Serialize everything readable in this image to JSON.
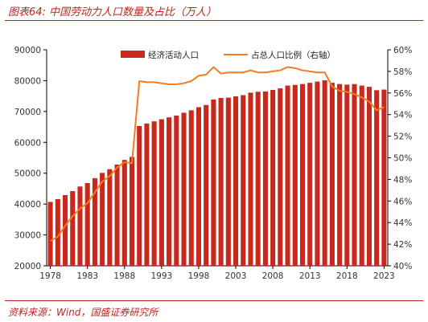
{
  "header": {
    "title": "图表64:  中国劳动力人口数量及占比（万人）"
  },
  "footer": {
    "source": "资料来源：Wind，国盛证券研究所"
  },
  "colors": {
    "accent": "#c0221b",
    "bar": "#c9281c",
    "line": "#f47b20",
    "axis": "#333333"
  },
  "chart_data": {
    "type": "bar",
    "title": "",
    "xlabel": "",
    "ylabel": "",
    "ylim": [
      20000,
      90000
    ],
    "y2lim": [
      40,
      60
    ],
    "yticks": [
      "20000",
      "30000",
      "40000",
      "50000",
      "60000",
      "70000",
      "80000",
      "90000"
    ],
    "y2ticks": [
      "40%",
      "42%",
      "44%",
      "46%",
      "48%",
      "50%",
      "52%",
      "54%",
      "56%",
      "58%",
      "60%"
    ],
    "xticks": [
      "1978",
      "1983",
      "1988",
      "1993",
      "1998",
      "2003",
      "2008",
      "2013",
      "2018",
      "2023"
    ],
    "legend_position": "top",
    "x": [
      1978,
      1979,
      1980,
      1981,
      1982,
      1983,
      1984,
      1985,
      1986,
      1987,
      1988,
      1989,
      1990,
      1991,
      1992,
      1993,
      1994,
      1995,
      1996,
      1997,
      1998,
      1999,
      2000,
      2001,
      2002,
      2003,
      2004,
      2005,
      2006,
      2007,
      2008,
      2009,
      2010,
      2011,
      2012,
      2013,
      2014,
      2015,
      2016,
      2017,
      2018,
      2019,
      2020,
      2021,
      2022,
      2023
    ],
    "series": [
      {
        "name": "经济活动人口",
        "axis": "left",
        "kind": "bar",
        "values": [
          40700,
          41600,
          42900,
          44200,
          45700,
          46800,
          48400,
          50100,
          51300,
          52800,
          54300,
          55300,
          65300,
          66100,
          66800,
          67500,
          68100,
          68700,
          69600,
          70400,
          71400,
          72100,
          73900,
          74400,
          74500,
          74900,
          75300,
          76100,
          76400,
          76500,
          77000,
          77500,
          78400,
          78600,
          78900,
          79300,
          79700,
          80100,
          79300,
          78900,
          78700,
          78900,
          78400,
          78000,
          76900,
          77100
        ]
      },
      {
        "name": "占总人口比例（右轴）",
        "axis": "right",
        "kind": "line",
        "values": [
          42.3,
          42.7,
          43.7,
          44.6,
          45.3,
          45.8,
          46.8,
          47.8,
          48.3,
          49.1,
          49.6,
          49.5,
          57.1,
          57.0,
          57.0,
          56.9,
          56.8,
          56.8,
          56.9,
          57.1,
          57.6,
          57.7,
          58.4,
          57.8,
          57.9,
          57.9,
          57.9,
          58.1,
          57.9,
          57.9,
          58.0,
          58.1,
          58.4,
          58.3,
          58.1,
          58.0,
          57.9,
          57.9,
          56.6,
          56.2,
          56.1,
          55.9,
          55.6,
          55.2,
          54.4,
          54.7
        ]
      }
    ]
  }
}
